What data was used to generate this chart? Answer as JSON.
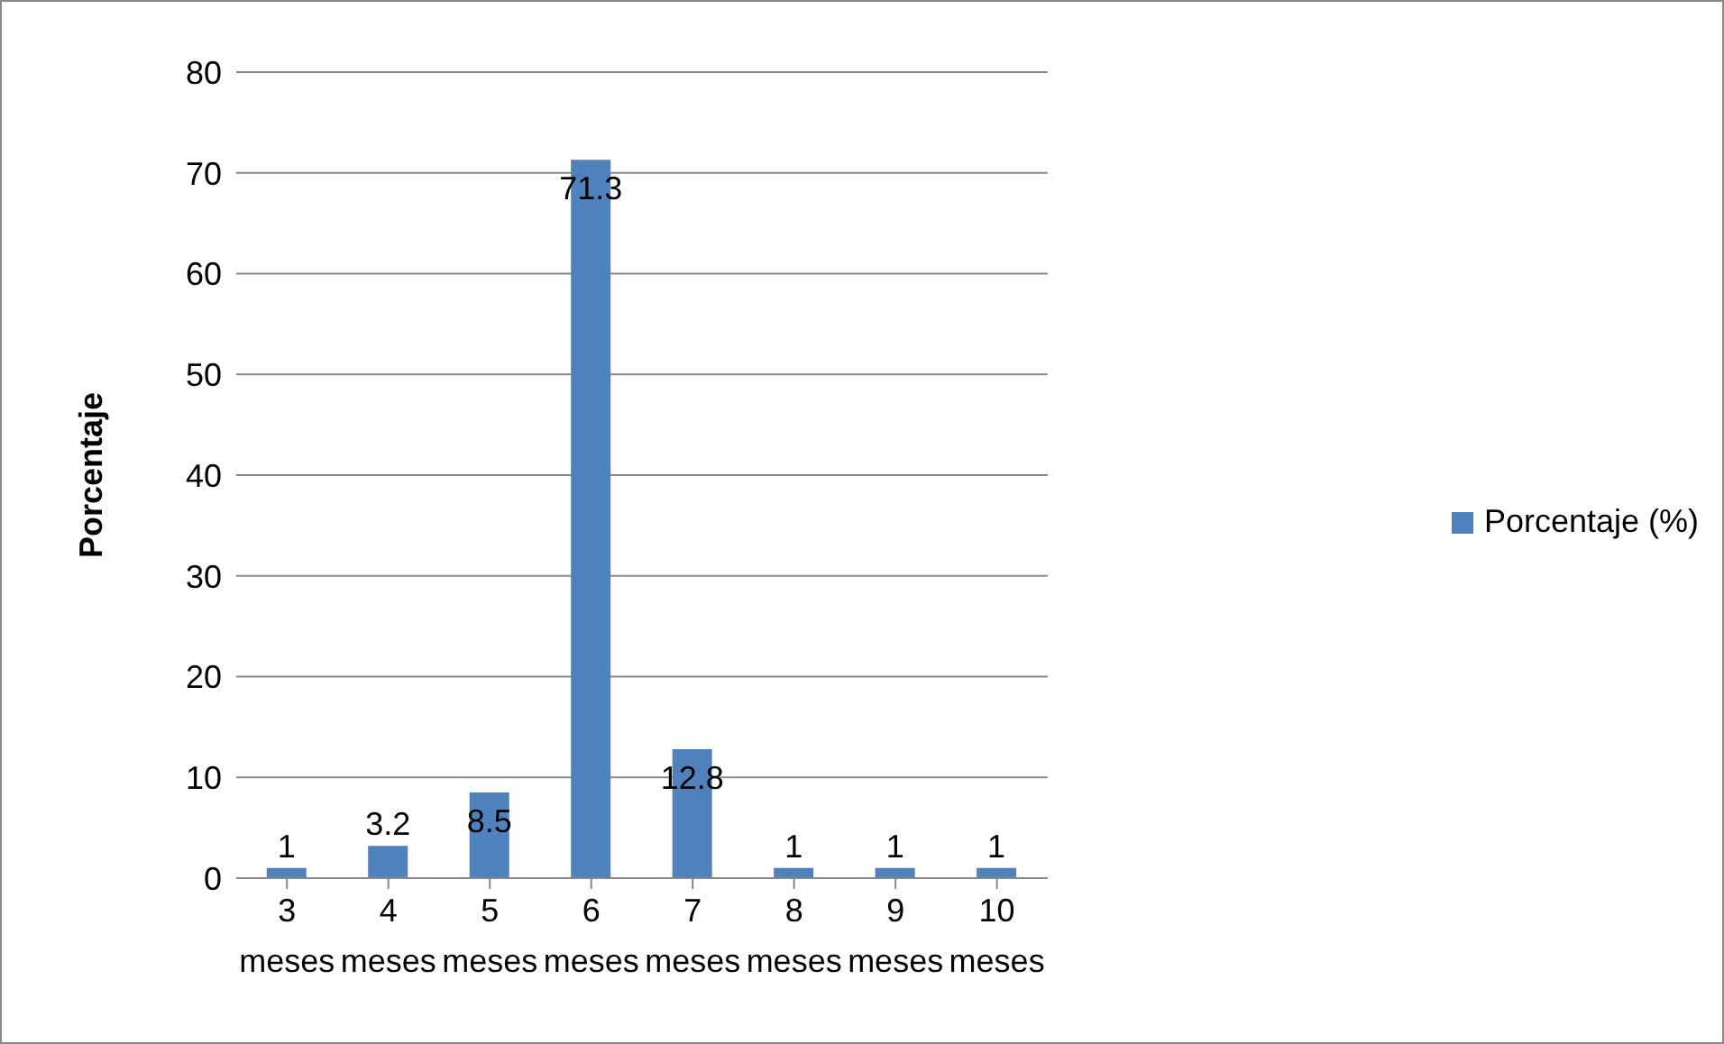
{
  "chart_data": {
    "type": "bar",
    "ylabel": "Porcentaje",
    "categories": [
      "3 meses",
      "4 meses",
      "5 meses",
      "6 meses",
      "7 meses",
      "8 meses",
      "9 meses",
      "10 meses"
    ],
    "series": [
      {
        "name": "Porcentaje (%)",
        "color": "#4f81bd",
        "values": [
          1,
          3.2,
          8.5,
          71.3,
          12.8,
          1,
          1,
          1
        ]
      }
    ],
    "ylim": [
      0,
      80
    ],
    "yticks": [
      0,
      10,
      20,
      30,
      40,
      50,
      60,
      70,
      80
    ],
    "grid": "y",
    "legend": "right",
    "data_labels": true
  }
}
